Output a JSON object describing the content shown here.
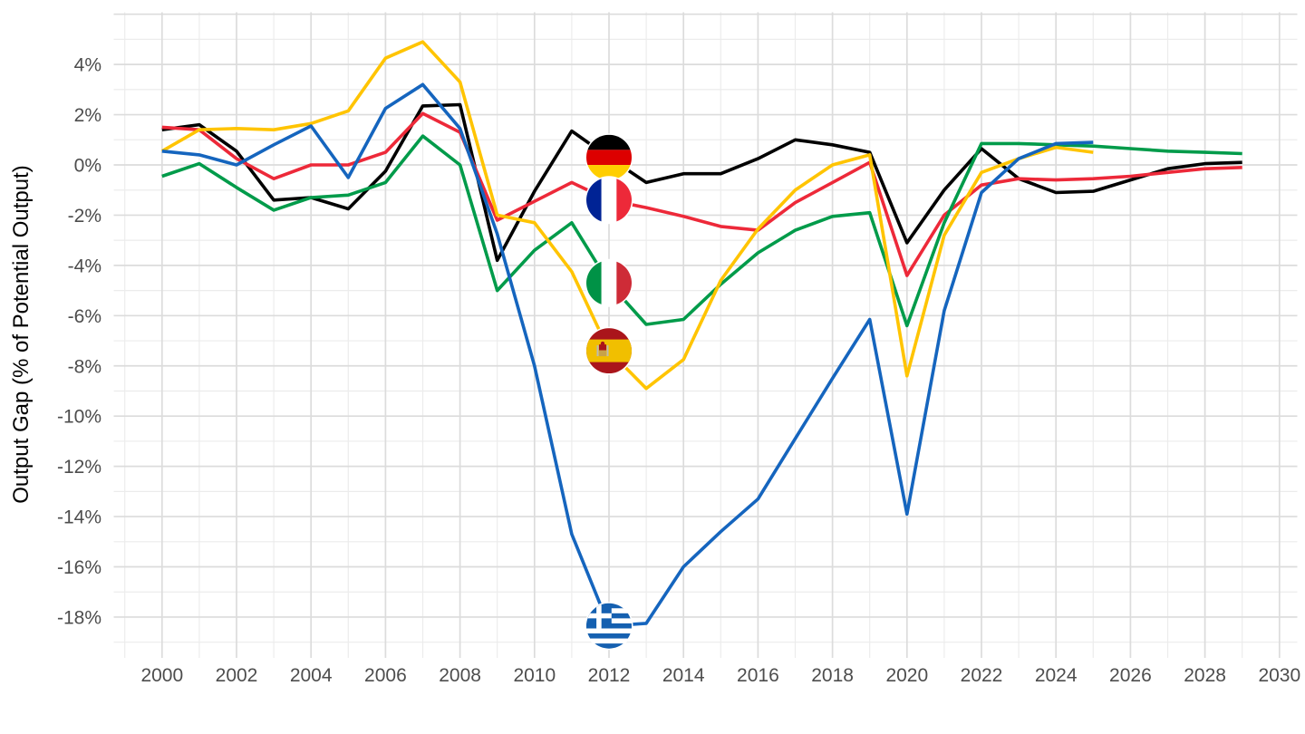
{
  "chart_data": {
    "type": "line",
    "title": "",
    "xlabel": "",
    "ylabel": "Output Gap (% of Potential Output)",
    "x": [
      2000,
      2001,
      2002,
      2003,
      2004,
      2005,
      2006,
      2007,
      2008,
      2009,
      2010,
      2011,
      2012,
      2013,
      2014,
      2015,
      2016,
      2017,
      2018,
      2019,
      2020,
      2021,
      2022,
      2023,
      2024,
      2025,
      2026,
      2027,
      2028,
      2029
    ],
    "x_ticks": [
      "2000",
      "2002",
      "2004",
      "2006",
      "2008",
      "2010",
      "2012",
      "2014",
      "2016",
      "2018",
      "2020",
      "2022",
      "2024",
      "2026",
      "2028",
      "2030"
    ],
    "x_tick_values": [
      2000,
      2002,
      2004,
      2006,
      2008,
      2010,
      2012,
      2014,
      2016,
      2018,
      2020,
      2022,
      2024,
      2026,
      2028,
      2030
    ],
    "y_ticks": [
      "4%",
      "2%",
      "0%",
      "-2%",
      "-4%",
      "-6%",
      "-8%",
      "-10%",
      "-12%",
      "-14%",
      "-16%",
      "-18%"
    ],
    "y_tick_values": [
      4,
      2,
      0,
      -2,
      -4,
      -6,
      -8,
      -10,
      -12,
      -14,
      -16,
      -18
    ],
    "xlim": [
      1998.7,
      2030.5
    ],
    "ylim": [
      -19.6,
      6.1
    ],
    "grid": "on",
    "legend_position": "none (flag markers on lines at year 2012)",
    "marker_year": 2012,
    "series": [
      {
        "name": "Germany",
        "color": "#000000",
        "flag": "germany",
        "values": [
          1.4,
          1.6,
          0.55,
          -1.4,
          -1.3,
          -1.75,
          -0.25,
          2.35,
          2.4,
          -3.8,
          -1.05,
          1.35,
          0.3,
          -0.7,
          -0.35,
          -0.35,
          0.25,
          1.0,
          0.8,
          0.5,
          -3.1,
          -1.0,
          0.65,
          -0.55,
          -1.1,
          -1.05,
          -0.6,
          -0.15,
          0.05,
          0.1
        ]
      },
      {
        "name": "France",
        "color": "#ED2939",
        "flag": "france",
        "values": [
          1.5,
          1.4,
          0.25,
          -0.55,
          0.0,
          0.0,
          0.5,
          2.05,
          1.3,
          -2.2,
          -1.45,
          -0.7,
          -1.4,
          -1.7,
          -2.05,
          -2.45,
          -2.6,
          -1.5,
          -0.7,
          0.1,
          -4.4,
          -2.0,
          -0.8,
          -0.55,
          -0.6,
          -0.55,
          -0.45,
          -0.3,
          -0.15,
          -0.1
        ]
      },
      {
        "name": "Italy",
        "color": "#009B4A",
        "flag": "italy",
        "values": [
          -0.45,
          0.05,
          -0.9,
          -1.8,
          -1.3,
          -1.2,
          -0.7,
          1.15,
          0.0,
          -5.0,
          -3.4,
          -2.3,
          -4.7,
          -6.35,
          -6.15,
          -4.75,
          -3.5,
          -2.6,
          -2.05,
          -1.9,
          -6.4,
          -2.3,
          0.85,
          0.85,
          0.8,
          0.75,
          0.65,
          0.55,
          0.5,
          0.45
        ]
      },
      {
        "name": "Spain",
        "color": "#FFC400",
        "flag": "spain",
        "values": [
          0.55,
          1.4,
          1.45,
          1.4,
          1.65,
          2.15,
          4.25,
          4.9,
          3.3,
          -2.0,
          -2.3,
          -4.25,
          -7.4,
          -8.9,
          -7.75,
          -4.6,
          -2.55,
          -1.0,
          0.0,
          0.4,
          -8.4,
          -2.8,
          -0.3,
          0.25,
          0.7,
          0.5,
          null,
          null,
          null,
          null
        ]
      },
      {
        "name": "Greece",
        "color": "#1565BE",
        "flag": "greece",
        "values": [
          0.55,
          0.4,
          0.0,
          0.8,
          1.55,
          -0.5,
          2.25,
          3.2,
          1.45,
          -2.75,
          -8.0,
          -14.7,
          -18.35,
          -18.25,
          -16.0,
          -14.6,
          -13.3,
          -10.9,
          -8.5,
          -6.15,
          -13.9,
          -5.8,
          -1.1,
          0.25,
          0.85,
          0.9,
          null,
          null,
          null,
          null
        ]
      }
    ],
    "flag_colors": {
      "germany": [
        "#000000",
        "#DD0000",
        "#FFCE00"
      ],
      "france": [
        "#002395",
        "#FFFFFF",
        "#ED2939"
      ],
      "italy": [
        "#009246",
        "#FFFFFF",
        "#CE2B37"
      ],
      "spain": [
        "#AA151B",
        "#F1BF00"
      ],
      "greece": [
        "#1560B0",
        "#FFFFFF"
      ]
    }
  },
  "style_colors": {
    "background": "#ffffff",
    "grid_major": "#dcdcdc",
    "grid_minor": "#ececec",
    "tick_label": "#4d4d4d",
    "axis_title": "#000000"
  }
}
